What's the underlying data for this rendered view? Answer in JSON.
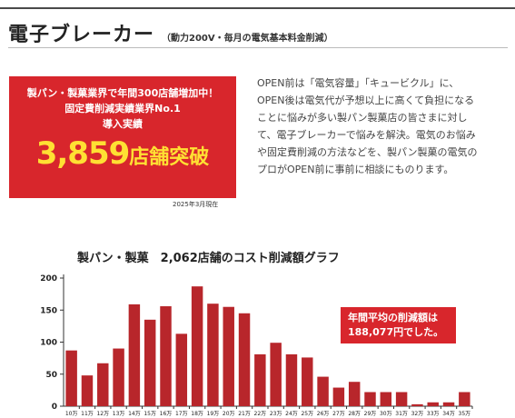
{
  "header": {
    "title": "電子ブレーカー",
    "subtitle": "（動力200V・毎月の電気基本料金削減）"
  },
  "promo": {
    "line1": "製パン・製菓業界で年間300店舗増加中！",
    "line2": "固定費削減実績業界No.1",
    "line3": "導入実績",
    "big_number": "3,859",
    "big_suffix": "店舗突破",
    "as_of": "2025年3月現在"
  },
  "description": [
    "OPEN前は「電気容量」「キュービクル」に、",
    "OPEN後は電気代が予想以上に高くて負担になる",
    "ことに悩みが多い製パン製菓店の皆さまに対し",
    "て、電子ブレーカーで悩みを解決。電気のお悩み",
    "や固定費削減の方法などを、製パン製菓の電気の",
    "プロがOPEN前に事前に相談にものります。"
  ],
  "callout": {
    "line1": "年間平均の削減額は",
    "line2": "188,077円でした。"
  },
  "colors": {
    "accent": "#d8262c",
    "highlight": "#ffe033",
    "bar": "#b8262b"
  },
  "chart_data": {
    "type": "bar",
    "title": "製パン・製菓　2,062店舗のコスト削減額グラフ",
    "categories": [
      "10万",
      "11万",
      "12万",
      "13万",
      "14万",
      "15万",
      "16万",
      "17万",
      "18万",
      "19万",
      "20万",
      "21万",
      "22万",
      "23万",
      "24万",
      "25万",
      "26万",
      "27万",
      "28万",
      "29万",
      "30万",
      "31万",
      "32万",
      "33万",
      "34万",
      "35万"
    ],
    "values": [
      87,
      48,
      67,
      90,
      159,
      135,
      156,
      113,
      187,
      160,
      155,
      145,
      81,
      99,
      81,
      76,
      46,
      29,
      38,
      22,
      22,
      22,
      3,
      6,
      6,
      22
    ],
    "yticks": [
      0,
      50,
      100,
      150,
      200
    ],
    "ylim": [
      0,
      200
    ],
    "xlabel": "",
    "ylabel": "",
    "grid": false
  }
}
